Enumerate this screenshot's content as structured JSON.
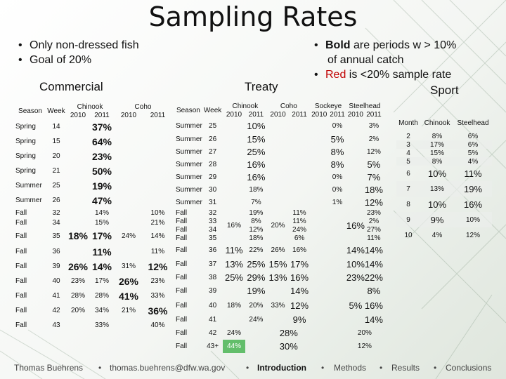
{
  "title": "Sampling Rates",
  "bullets_left": [
    "Only non-dressed fish",
    "Goal of 20%"
  ],
  "bullets_right": [
    {
      "bold": "Bold",
      "rest": " are periods w > 10%",
      "cont": "of annual catch"
    },
    {
      "red": "Red",
      "rest": " is <20% sample rate"
    }
  ],
  "labels": {
    "commercial": "Commercial",
    "treaty": "Treaty",
    "sport": "Sport"
  },
  "commercial": {
    "h_season": "Season",
    "h_week": "Week",
    "h_chinook": "Chinook",
    "h_coho": "Coho",
    "years": [
      "2010",
      "2011",
      "2010",
      "2011"
    ],
    "rows": [
      [
        "Spring",
        "14",
        "",
        "37%",
        "",
        ""
      ],
      [
        "Spring",
        "15",
        "",
        "64%",
        "",
        ""
      ],
      [
        "Spring",
        "20",
        "",
        "23%",
        "",
        ""
      ],
      [
        "Spring",
        "21",
        "",
        "50%",
        "",
        ""
      ],
      [
        "Summer",
        "25",
        "",
        "19%",
        "",
        ""
      ],
      [
        "Summer",
        "26",
        "",
        "47%",
        "",
        ""
      ],
      [
        "Fall",
        "32",
        "",
        "14%",
        "",
        "10%"
      ],
      [
        "Fall",
        "34",
        "",
        "15%",
        "",
        "21%"
      ],
      [
        "Fall",
        "35",
        "18%",
        "17%",
        "24%",
        "14%"
      ],
      [
        "Fall",
        "36",
        "",
        "11%",
        "",
        "11%"
      ],
      [
        "Fall",
        "39",
        "26%",
        "14%",
        "31%",
        "12%"
      ],
      [
        "Fall",
        "40",
        "23%",
        "17%",
        "26%",
        "23%"
      ],
      [
        "Fall",
        "41",
        "28%",
        "28%",
        "41%",
        "33%"
      ],
      [
        "Fall",
        "42",
        "20%",
        "34%",
        "21%",
        "36%"
      ],
      [
        "Fall",
        "43",
        "",
        "33%",
        "",
        "40%"
      ]
    ]
  },
  "treaty": {
    "h_season": "Season",
    "h_week": "Week",
    "h_chinook": "Chinook",
    "h_coho": "Coho",
    "h_sockeye": "Sockeye",
    "h_steelhead": "Steelhead",
    "years": [
      "2010",
      "2011",
      "2010",
      "2011",
      "2010",
      "2011",
      "2010",
      "2011"
    ],
    "summer_rows": [
      [
        "Summer",
        "25",
        "",
        "10%",
        "",
        "",
        "",
        "0%",
        "",
        "3%"
      ],
      [
        "Summer",
        "26",
        "",
        "15%",
        "",
        "",
        "",
        "5%",
        "",
        "2%"
      ],
      [
        "Summer",
        "27",
        "",
        "25%",
        "",
        "",
        "",
        "8%",
        "",
        "12%"
      ],
      [
        "Summer",
        "28",
        "",
        "16%",
        "",
        "",
        "",
        "8%",
        "",
        "5%"
      ],
      [
        "Summer",
        "29",
        "",
        "16%",
        "",
        "",
        "",
        "0%",
        "",
        "7%"
      ],
      [
        "Summer",
        "30",
        "",
        "18%",
        "",
        "",
        "",
        "0%",
        "",
        "18%"
      ],
      [
        "Summer",
        "31",
        "",
        "7%",
        "",
        "",
        "",
        "1%",
        "",
        "12%"
      ]
    ],
    "fall_block": {
      "seasons": [
        "Fall",
        "Fall",
        "Fall",
        "Fall"
      ],
      "weeks": [
        "32",
        "33",
        "34",
        "35"
      ],
      "chinook2010": "16%",
      "chinook2011": [
        "19%",
        "8%",
        "12%",
        "18%"
      ],
      "coho2010": "20%",
      "coho2011": [
        "11%",
        "11%",
        "24%",
        "6%"
      ],
      "steel2010": "16%",
      "steel2011": [
        "23%",
        "2%",
        "27%",
        "11%"
      ]
    },
    "fall_rows": [
      [
        "Fall",
        "36",
        "11%",
        "22%",
        "26%",
        "16%",
        "",
        "",
        "14%",
        "14%"
      ],
      [
        "Fall",
        "37",
        "13%",
        "25%",
        "15%",
        "17%",
        "",
        "",
        "10%",
        "14%"
      ],
      [
        "Fall",
        "38",
        "25%",
        "29%",
        "13%",
        "16%",
        "",
        "",
        "23%",
        "22%"
      ],
      [
        "Fall",
        "39",
        "",
        "19%",
        "",
        "14%",
        "",
        "",
        "",
        "8%"
      ],
      [
        "Fall",
        "40",
        "18%",
        "20%",
        "33%",
        "12%",
        "",
        "",
        "5%",
        "16%"
      ],
      [
        "Fall",
        "41",
        "",
        "24%",
        "",
        "9%",
        "",
        "",
        "",
        "14%"
      ]
    ],
    "late_rows": [
      [
        "Fall",
        "42",
        "24%",
        "",
        "20%"
      ],
      [
        "Fall",
        "43+",
        "44%",
        "",
        "12%"
      ]
    ],
    "late_coho": [
      "28%",
      "30%"
    ]
  },
  "sport": {
    "h_month": "Month",
    "h_chinook": "Chinook",
    "h_steelhead": "Steelhead",
    "rows": [
      [
        "2",
        "8%",
        "6%"
      ],
      [
        "3",
        "17%",
        "6%"
      ],
      [
        "4",
        "15%",
        "5%"
      ],
      [
        "5",
        "8%",
        "4%"
      ],
      [
        "6",
        "10%",
        "11%"
      ],
      [
        "7",
        "13%",
        "19%"
      ],
      [
        "8",
        "10%",
        "16%"
      ],
      [
        "9",
        "9%",
        "10%"
      ],
      [
        "10",
        "4%",
        "12%"
      ]
    ]
  },
  "footer": {
    "author": "Thomas Buehrens",
    "email": "thomas.buehrens@dfw.wa.gov",
    "intro": "Introduction",
    "methods": "Methods",
    "results": "Results",
    "conclusions": "Conclusions",
    "sep": "•"
  }
}
